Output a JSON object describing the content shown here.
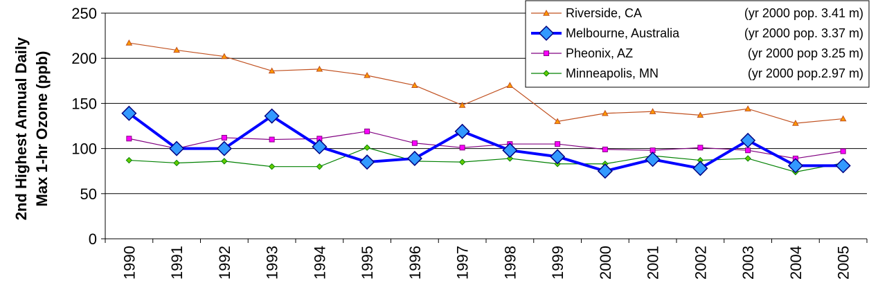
{
  "chart_data": {
    "type": "line",
    "ylabel_line1": "2nd Highest Annual Daily",
    "ylabel_line2": "Max 1-hr Ozone  (ppb)",
    "ylim": [
      0,
      250
    ],
    "yticks": [
      0,
      50,
      100,
      150,
      200,
      250
    ],
    "grid": true,
    "legend_position": "top-right",
    "categories": [
      "1990",
      "1991",
      "1992",
      "1993",
      "1994",
      "1995",
      "1996",
      "1997",
      "1998",
      "1999",
      "2000",
      "2001",
      "2002",
      "2003",
      "2004",
      "2005"
    ],
    "series": [
      {
        "name": "Riverside, CA",
        "note": "(yr 2000 pop. 3.41 m)",
        "color": "#c0501f",
        "marker": "triangle",
        "values": [
          217,
          209,
          202,
          186,
          188,
          181,
          170,
          148,
          170,
          130,
          139,
          141,
          137,
          144,
          128,
          133
        ]
      },
      {
        "name": "Melbourne, Australia",
        "note": "(yr 2000 pop. 3.37 m)",
        "color": "#0000ff",
        "marker_fill": "#3399ff",
        "marker": "diamond",
        "values": [
          139,
          100,
          100,
          136,
          102,
          85,
          89,
          119,
          98,
          91,
          75,
          88,
          78,
          109,
          81,
          81
        ]
      },
      {
        "name": "Pheonix, AZ",
        "note": "(yr 2000 pop 3.25 m)",
        "color": "#800080",
        "marker_fill": "#ff00ff",
        "marker": "square",
        "values": [
          111,
          100,
          112,
          110,
          111,
          119,
          106,
          101,
          105,
          105,
          99,
          98,
          101,
          98,
          89,
          97
        ]
      },
      {
        "name": "Minneapolis, MN",
        "note": "(yr 2000 pop.2.97 m)",
        "color": "#008000",
        "marker_fill": "#66cc00",
        "marker": "diamond-small",
        "values": [
          87,
          84,
          86,
          80,
          80,
          101,
          86,
          85,
          89,
          83,
          83,
          92,
          87,
          89,
          74,
          84
        ]
      }
    ]
  }
}
